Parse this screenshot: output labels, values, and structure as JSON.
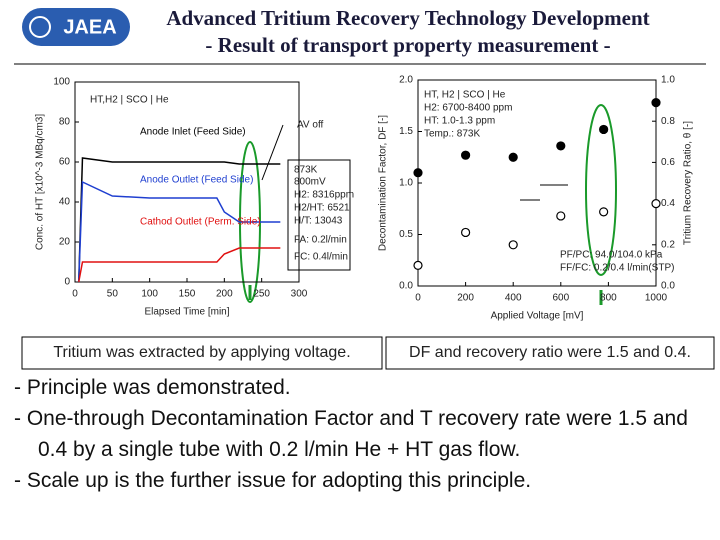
{
  "header": {
    "logo": "JAEA",
    "title": "Advanced Tritium Recovery Technology Development",
    "subtitle": "- Result of  transport property measurement -"
  },
  "chart_data": [
    {
      "type": "line",
      "xlabel": "Elapsed Time [min]",
      "ylabel": "Conc. of HT [x10^-3 MBq/cm3]",
      "x": [
        5,
        10,
        50,
        100,
        150,
        190,
        200,
        220,
        250,
        275
      ],
      "series": [
        {
          "name": "Anode Inlet (Feed Side)",
          "color": "#000000",
          "values": [
            0,
            62,
            60,
            60,
            60,
            60,
            60,
            59,
            59,
            59
          ]
        },
        {
          "name": "Anode Outlet (Feed Side)",
          "color": "#1f3fd0",
          "values": [
            0,
            50,
            43,
            42,
            42,
            42,
            35,
            30,
            30,
            30
          ]
        },
        {
          "name": "Cathod Outlet (Perm. Side)",
          "color": "#e01010",
          "values": [
            0,
            10,
            10,
            10,
            10,
            10,
            14,
            17,
            17,
            17
          ]
        }
      ],
      "xlim": [
        0,
        300
      ],
      "xticks": [
        0,
        50,
        100,
        150,
        200,
        250,
        300
      ],
      "ylim": [
        0,
        100
      ],
      "yticks": [
        0,
        20,
        40,
        60,
        80,
        100
      ],
      "annotations": [
        "HT,H2 | SCO | He",
        "AV off",
        "873K",
        "800mV",
        "H2: 8316ppm",
        "H2/HT: 6521",
        "H/T: 13043",
        "FA: 0.2l/min",
        "FC: 0.4l/min"
      ]
    },
    {
      "type": "scatter",
      "xlabel": "Applied Voltage [mV]",
      "ylabel": "Decontamination Factor, DF [-]",
      "y2label": "Tritium Recovery Ratio, θ [-]",
      "series": [
        {
          "color": "#000000",
          "marker": "filled",
          "x": [
            0,
            200,
            400,
            600,
            780,
            1000
          ],
          "values": [
            1.1,
            1.27,
            1.25,
            1.36,
            1.52,
            1.78
          ]
        },
        {
          "color": "#000000",
          "marker": "open",
          "axis": "y2",
          "x": [
            0,
            200,
            400,
            600,
            780,
            1000
          ],
          "values": [
            0.1,
            0.26,
            0.2,
            0.34,
            0.36,
            0.4
          ]
        }
      ],
      "xlim": [
        0,
        1000
      ],
      "xticks": [
        0,
        200,
        400,
        600,
        800,
        1000
      ],
      "ylim": [
        0,
        2
      ],
      "yticks": [
        {
          "value": 0,
          "label": "0.0"
        },
        {
          "value": 0.5,
          "label": "0.5"
        },
        {
          "value": 1,
          "label": "1.0"
        },
        {
          "value": 1.5,
          "label": "1.5"
        },
        {
          "value": 2,
          "label": "2.0"
        }
      ],
      "y2lim": [
        0,
        1
      ],
      "y2ticks": [
        {
          "value": 0,
          "label": "0.0"
        },
        0.2,
        0.4,
        0.6,
        0.8,
        {
          "value": 1,
          "label": "1.0"
        }
      ],
      "annotations": [
        "HT, H2 | SCO | He",
        "H2: 6700-8400 ppm",
        "HT: 1.0-1.3 ppm",
        "Temp.: 873K",
        "PF/PC: 94.0/104.0 kPa",
        "FF/FC: 0.2/0.4 l/min(STP)"
      ]
    }
  ],
  "captions": [
    "Tritium was extracted by applying voltage.",
    "DF and recovery ratio were 1.5 and 0.4."
  ],
  "bullets": [
    "- Principle was demonstrated.",
    "- One-through Decontamination Factor and T recovery rate were 1.5 and 0.4 by a single tube with 0.2 l/min He + HT gas flow.",
    "- Scale up is the further issue for adopting this principle."
  ]
}
